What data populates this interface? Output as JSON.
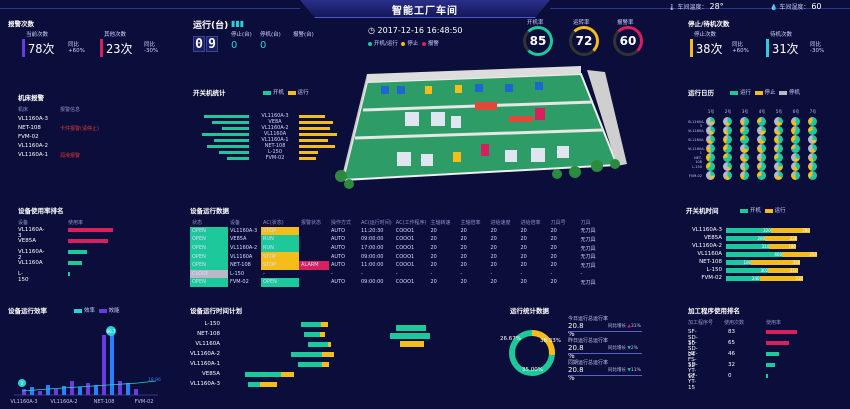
{
  "header": {
    "title": "智能工厂车间",
    "temp_label": "车间温度：",
    "temp_value": "28°",
    "humidity_label": "车间湿度：",
    "humidity_value": "60"
  },
  "colors": {
    "green": "#1dc89a",
    "yellow": "#f5bd1a",
    "red": "#d8205e",
    "gray": "#b8b8c8",
    "blue": "#2a7fff",
    "purple": "#6a3be0",
    "cyan": "#28d0d8"
  },
  "alarms": {
    "title": "报警次数",
    "today_label": "当前次数",
    "today_value": "78次",
    "today_change_label": "同比",
    "today_change": "+60%",
    "total_label": "其他次数",
    "total_value": "23次",
    "total_change_label": "同比",
    "total_change": "-30%"
  },
  "running": {
    "title": "运行(台)",
    "digits": [
      "0",
      "9"
    ],
    "stopped_label": "停止(台)",
    "stopped_value": "0",
    "standby_label": "停机(台)",
    "standby_value": "0",
    "alarm_label": "报警(台)",
    "alarm_value": ""
  },
  "datetime": {
    "value": "2017-12-16 16:48:50",
    "legend": [
      "开机/运行",
      "停止",
      "报警"
    ]
  },
  "gauges": [
    {
      "label": "开机率",
      "value": "85"
    },
    {
      "label": "运转率",
      "value": "72"
    },
    {
      "label": "报警率",
      "value": "60"
    }
  ],
  "stops": {
    "title": "停止/待机次数",
    "stop_label": "停止次数",
    "stop_value": "38次",
    "stop_change_label": "同比",
    "stop_change": "+60%",
    "standby_label": "待机次数",
    "standby_value": "31次",
    "standby_change_label": "同比",
    "standby_change": "-30%"
  },
  "machine_alarm": {
    "title": "机床报警",
    "col1": "机床",
    "col2": "报警信息",
    "rows": [
      {
        "name": "VL1160A-3",
        "msg": ""
      },
      {
        "name": "NET-108",
        "msg": "卡件报警(请停止)"
      },
      {
        "name": "FVM-02",
        "msg": ""
      },
      {
        "name": "VL1160A-2",
        "msg": ""
      },
      {
        "name": "VL1160A-1",
        "msg": "润滑报警"
      }
    ]
  },
  "onoff_stats": {
    "title": "开关机统计",
    "legend": [
      "开机",
      "运行"
    ],
    "labels": [
      "VL1160A-3",
      "VE8A",
      "VL1160A-2",
      "VL1160A",
      "VL1160A-1",
      "NET-108",
      "L-150",
      "FVM-02"
    ],
    "on": [
      0.9,
      0.75,
      0.55,
      0.95,
      0.7,
      0.85,
      0.6,
      0.45
    ],
    "run": [
      0.55,
      0.7,
      0.65,
      0.8,
      0.6,
      0.75,
      0.4,
      0.35
    ]
  },
  "run_calendar": {
    "title": "运行日历",
    "legend": [
      "运行",
      "停止",
      "停机"
    ],
    "cols": [
      "1号",
      "2号",
      "3号",
      "4号",
      "5号",
      "6号",
      "7号"
    ],
    "rows": [
      "SL1160A-3",
      "VL1160A",
      "SL1160A",
      "VL1160A-1",
      "NET-108",
      "L-150",
      "FVM-02"
    ]
  },
  "usage_rank": {
    "title": "设备使用率排名",
    "col1": "设备",
    "col2": "使用率",
    "rows": [
      {
        "name": "VL1160A-3",
        "value": 0.9,
        "color": "red"
      },
      {
        "name": "VE85A",
        "value": 0.8,
        "color": "red"
      },
      {
        "name": "VL1160A-2",
        "value": 0.35,
        "color": "green"
      },
      {
        "name": "VL1160A",
        "value": 0.25,
        "color": "green"
      },
      {
        "name": "L-150",
        "value": 0.0,
        "color": "green"
      }
    ]
  },
  "device_data": {
    "title": "设备运行数据",
    "headers": [
      "状态",
      "设备",
      "AC(状态)",
      "报警状态",
      "操作方式",
      "AC(运行时间)",
      "AC(工作程序)",
      "主轴转速",
      "主轴倍率",
      "进给速度",
      "进给倍率",
      "刀具号",
      "刀具"
    ],
    "rows": [
      [
        "OPEN",
        "VL1160A-3",
        "STOP",
        "",
        "AUTO",
        "11:20:30",
        "COOO1",
        "20",
        "20",
        "20",
        "20",
        "20",
        "无刀具"
      ],
      [
        "OPEN",
        "VE85A",
        "RUN",
        "",
        "AUTO",
        "09:00:00",
        "COOO1",
        "20",
        "20",
        "20",
        "20",
        "20",
        "无刀具"
      ],
      [
        "OPEN",
        "VL1160A-2",
        "RUN",
        "",
        "AUTO",
        "17:00:00",
        "COOO1",
        "20",
        "20",
        "20",
        "20",
        "20",
        "无刀具"
      ],
      [
        "OPEN",
        "VL1160A",
        "STOP",
        "",
        "AUTO",
        "09:00:00",
        "COOO1",
        "20",
        "20",
        "20",
        "20",
        "20",
        "无刀具"
      ],
      [
        "OPEN",
        "NET-108",
        "STOP",
        "ALARM",
        "AUTO",
        "11:00:00",
        "COOO1",
        "20",
        "20",
        "20",
        "20",
        "20",
        "无刀具"
      ],
      [
        "CLOSE",
        "L-150",
        "-",
        "",
        "-",
        "-",
        "-",
        "-",
        "-",
        "-",
        "-",
        "-",
        "-"
      ],
      [
        "OPEN",
        "FVM-02",
        "OPEN",
        "",
        "AUTO",
        "09:00:00",
        "COOO1",
        "20",
        "20",
        "20",
        "20",
        "20",
        "无刀具"
      ]
    ]
  },
  "open_time": {
    "title": "开关机时间",
    "legend": [
      "开机",
      "运行"
    ],
    "rows": [
      {
        "name": "VL1160A-3",
        "on": 320,
        "run": 280
      },
      {
        "name": "VE85A",
        "on": 280,
        "run": 230
      },
      {
        "name": "VL1160A-2",
        "on": 310,
        "run": 190
      },
      {
        "name": "VL1160A",
        "on": 400,
        "run": 250
      },
      {
        "name": "NET-108",
        "on": 180,
        "run": 350
      },
      {
        "name": "L-150",
        "on": 302,
        "run": 210
      },
      {
        "name": "FVM-02",
        "on": 240,
        "run": 310
      }
    ]
  },
  "efficiency": {
    "title": "设备运行效率",
    "legend": [
      "效率",
      "效能"
    ],
    "categories": [
      "VL1160A-3",
      "VL1160A-2",
      "NET-108",
      "FVM-02"
    ],
    "ymax": 100,
    "peak_label": "66.7",
    "low_label": "2",
    "right_label": "18.96"
  },
  "plan": {
    "title": "设备运行时间计划",
    "rows": [
      "L-150",
      "NET-108",
      "VL1160A",
      "VL1160A-2",
      "VL1160A-1",
      "VE85A",
      "VL1160A-3"
    ]
  },
  "runstats": {
    "title": "运行统计数据",
    "donut_labels": [
      "26.67%",
      "38.33%",
      "35.00%"
    ],
    "donut_values": [
      26.67,
      38.33,
      35.0
    ],
    "stats": [
      {
        "label": "今日运行总运行率",
        "value": "20.8 %",
        "change_label": "同比增长",
        "change": "31%",
        "change_up": true
      },
      {
        "label": "昨日运行总运行率",
        "value": "20.8 %",
        "change_label": "同比增长",
        "change": "2%",
        "change_up": false
      },
      {
        "label": "同期运行总运行率",
        "value": "20.8 %",
        "change_label": "同比增长",
        "change": "11%",
        "change_up": false
      }
    ]
  },
  "processing": {
    "title": "加工程序使用排名",
    "col1": "加工程序号",
    "col2": "使用次数",
    "col3": "使用率",
    "rows": [
      {
        "name": "SF-SD-10",
        "count": "83",
        "rate": 0.95,
        "color": "red"
      },
      {
        "name": "SF-SD-24",
        "count": "65",
        "rate": 0.7,
        "color": "red"
      },
      {
        "name": "HE-FS-12",
        "count": "46",
        "rate": 0.35,
        "color": "green"
      },
      {
        "name": "SD-YT-12",
        "count": "32",
        "rate": 0.22,
        "color": "green"
      },
      {
        "name": "GF-YT-15",
        "count": "0",
        "rate": 0.0,
        "color": "green"
      }
    ]
  }
}
